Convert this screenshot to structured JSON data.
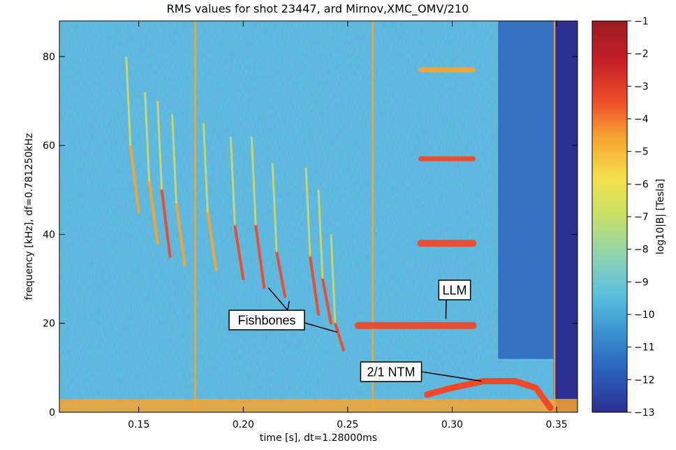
{
  "chart_data": {
    "type": "heatmap",
    "title": "RMS values for shot 23447, ard Mirnov,XMC_OMV/210",
    "xlabel": "time [s], dt=1.28000ms",
    "ylabel": "frequency [kHz], df=0.781250kHz",
    "xlim": [
      0.112,
      0.36
    ],
    "ylim": [
      0,
      88
    ],
    "x_ticks": [
      0.15,
      0.2,
      0.25,
      0.3,
      0.35
    ],
    "x_tick_labels": [
      "0.15",
      "0.20",
      "0.25",
      "0.30",
      "0.35"
    ],
    "y_ticks": [
      0,
      20,
      40,
      60,
      80
    ],
    "y_tick_labels": [
      "0",
      "20",
      "40",
      "60",
      "80"
    ],
    "colorbar": {
      "label": "log10|B| [Tesla]",
      "range": [
        -13,
        -1
      ],
      "ticks": [
        -1,
        -2,
        -3,
        -4,
        -5,
        -6,
        -7,
        -8,
        -9,
        -10,
        -11,
        -12,
        -13
      ],
      "tick_labels": [
        "−1",
        "−2",
        "−3",
        "−4",
        "−5",
        "−6",
        "−7",
        "−8",
        "−9",
        "−10",
        "−11",
        "−12",
        "−13"
      ],
      "colormap": [
        "#2b2f8f",
        "#2a5fb8",
        "#3a8fd0",
        "#5bc0de",
        "#8fd3b0",
        "#c7e06a",
        "#f2e14a",
        "#f7a531",
        "#ee4a2a",
        "#c41f26",
        "#9b1b1f"
      ]
    },
    "background_level": -9,
    "annotations": [
      {
        "label": "Fishbones",
        "points": [
          [
            0.212,
            28
          ],
          [
            0.222,
            25
          ],
          [
            0.245,
            18
          ]
        ]
      },
      {
        "label": "LLM",
        "points": [
          [
            0.297,
            21
          ]
        ]
      },
      {
        "label": "2/1 NTM",
        "points": [
          [
            0.314,
            7
          ]
        ]
      }
    ],
    "features": {
      "fishbone_chirps": [
        {
          "t": 0.146,
          "f_top": 60,
          "f_bottom": 45,
          "level": -5
        },
        {
          "t": 0.155,
          "f_top": 52,
          "f_bottom": 38,
          "level": -5
        },
        {
          "t": 0.161,
          "f_top": 50,
          "f_bottom": 35,
          "level": -4
        },
        {
          "t": 0.168,
          "f_top": 47,
          "f_bottom": 33,
          "level": -5
        },
        {
          "t": 0.183,
          "f_top": 45,
          "f_bottom": 32,
          "level": -5
        },
        {
          "t": 0.196,
          "f_top": 42,
          "f_bottom": 30,
          "level": -4
        },
        {
          "t": 0.206,
          "f_top": 42,
          "f_bottom": 28,
          "level": -4
        },
        {
          "t": 0.216,
          "f_top": 36,
          "f_bottom": 26,
          "level": -4
        },
        {
          "t": 0.232,
          "f_top": 35,
          "f_bottom": 22,
          "level": -4
        },
        {
          "t": 0.238,
          "f_top": 30,
          "f_bottom": 20,
          "level": -4
        },
        {
          "t": 0.244,
          "f_top": 20,
          "f_bottom": 14,
          "level": -3
        }
      ],
      "llm_bands": [
        {
          "f": 19.5,
          "t0": 0.255,
          "t1": 0.31,
          "level": -3
        },
        {
          "f": 38,
          "t0": 0.285,
          "t1": 0.31,
          "level": -3
        },
        {
          "f": 57,
          "t0": 0.285,
          "t1": 0.31,
          "level": -4
        },
        {
          "f": 77,
          "t0": 0.285,
          "t1": 0.31,
          "level": -5
        }
      ],
      "ntm": {
        "points": [
          [
            0.288,
            4
          ],
          [
            0.3,
            5.5
          ],
          [
            0.315,
            7
          ],
          [
            0.33,
            7
          ],
          [
            0.34,
            5.5
          ],
          [
            0.347,
            1
          ]
        ],
        "level": -3
      },
      "broadband_spikes_t": [
        0.177,
        0.262,
        0.349
      ]
    }
  }
}
